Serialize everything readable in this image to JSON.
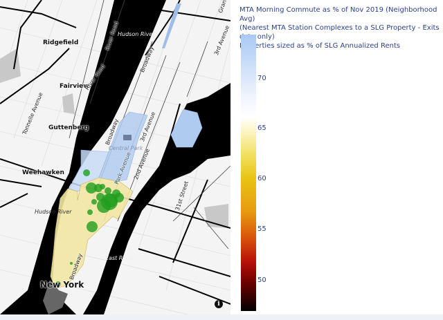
{
  "legend": {
    "title_lines": [
      "MTA Morning Commute as % of Nov 2019 (Neighborhood Avg)",
      "(Nearest MTA Station Complexes to a SLG Property - Exits data only)",
      "Properties sized as % of SLG Annualized Rents"
    ],
    "colorbar": {
      "ticks": [
        "70",
        "65",
        "60",
        "55",
        "50"
      ],
      "range": [
        47,
        74.5
      ],
      "colorscale": [
        "#000000",
        "#b81208",
        "#e79a10",
        "#e9c414",
        "#ffffff",
        "#a8c8f5"
      ]
    }
  },
  "map": {
    "places": [
      "Ridgefield",
      "Fairview",
      "Guttenberg",
      "Weehawken",
      "New York"
    ],
    "roads": [
      "River Road",
      "River Road",
      "Tonnelle Avenue",
      "Broadway",
      "Broadway",
      "3rd Avenue",
      "2nd Avenue",
      "31st Street",
      "Park Avenue",
      "3rd Avenue",
      "Grand",
      "Broadway"
    ],
    "water": [
      "Hudson River",
      "Hudson River",
      "East River"
    ],
    "parks": [
      "Central Park"
    ],
    "info_icon": "i",
    "colors": {
      "water": "#000000",
      "property_marker": "#1f9e1f",
      "low_value_area": "#f3e7a4",
      "high_value_area": "#b4cdf0"
    }
  }
}
